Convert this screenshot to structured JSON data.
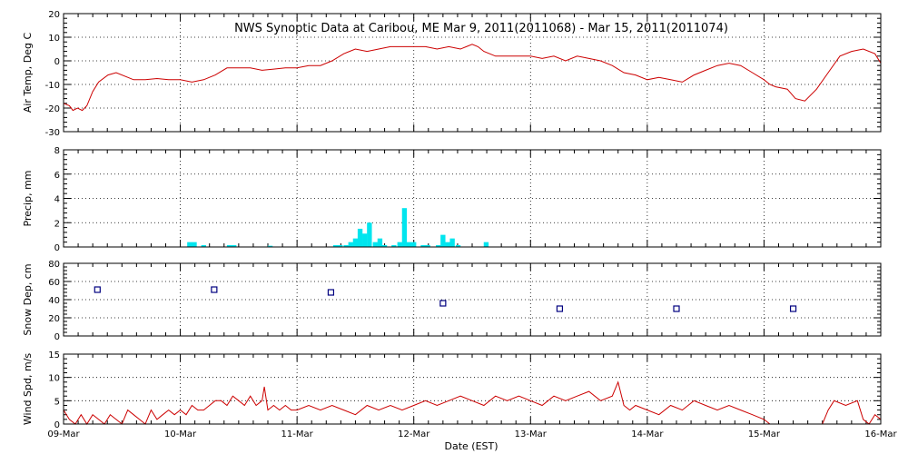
{
  "chart_data": {
    "title": "NWS Synoptic Data at Caribou, ME   Mar  9, 2011(2011068) - Mar 15, 2011(2011074)",
    "xlabel": "Date (EST)",
    "x_ticks": [
      "09-Mar",
      "10-Mar",
      "11-Mar",
      "12-Mar",
      "13-Mar",
      "14-Mar",
      "15-Mar",
      "16-Mar"
    ],
    "x_range_days": [
      0,
      7
    ],
    "panels": [
      {
        "id": "air-temp",
        "type": "line",
        "ylabel": "Air Temp, Deg C",
        "ylim": [
          -30,
          20
        ],
        "y_ticks": [
          -30,
          -20,
          -10,
          0,
          10,
          20
        ],
        "grid": true,
        "color": "#cc0000",
        "series": [
          {
            "x": [
              0,
              0.05,
              0.08,
              0.12,
              0.16,
              0.2,
              0.25,
              0.3,
              0.38,
              0.45,
              0.55,
              0.6,
              0.7,
              0.8,
              0.9,
              1.0,
              1.1,
              1.2,
              1.3,
              1.4,
              1.5,
              1.6,
              1.7,
              1.8,
              1.9,
              2.0,
              2.1,
              2.2,
              2.3,
              2.4,
              2.5,
              2.6,
              2.7,
              2.8,
              2.9,
              3.0,
              3.1,
              3.2,
              3.3,
              3.4,
              3.45,
              3.5,
              3.55,
              3.6,
              3.7,
              3.8,
              3.9,
              4.0,
              4.1,
              4.2,
              4.3,
              4.4,
              4.5,
              4.6,
              4.7,
              4.8,
              4.9,
              5.0,
              5.1,
              5.2,
              5.3,
              5.4,
              5.5,
              5.6,
              5.7,
              5.8,
              5.9,
              6.0,
              6.05,
              6.1,
              6.2,
              6.27,
              6.35,
              6.45,
              6.55,
              6.65,
              6.75,
              6.85,
              6.95,
              7.0
            ],
            "y": [
              -18,
              -19,
              -21,
              -20,
              -21,
              -19,
              -13,
              -9,
              -6,
              -5,
              -7,
              -8,
              -8,
              -7.5,
              -8,
              -8,
              -9,
              -8,
              -6,
              -3,
              -3,
              -3,
              -4,
              -3.5,
              -3,
              -3,
              -2,
              -2,
              0,
              3,
              5,
              4,
              5,
              6,
              6,
              6,
              6,
              5,
              6,
              5,
              6,
              7,
              6,
              4,
              2,
              2,
              2,
              2,
              1,
              2,
              0,
              2,
              1,
              0,
              -2,
              -5,
              -6,
              -8,
              -7,
              -8,
              -9,
              -6,
              -4,
              -2,
              -1,
              -2,
              -5,
              -8,
              -10,
              -11,
              -12,
              -16,
              -17,
              -12,
              -5,
              2,
              4,
              5,
              3,
              -1
            ]
          }
        ]
      },
      {
        "id": "precip",
        "type": "bar",
        "ylabel": "Precip, mm",
        "ylim": [
          0,
          8
        ],
        "y_ticks": [
          0,
          2,
          4,
          6,
          8
        ],
        "grid": true,
        "color": "#00e5ee",
        "bar_width_days": 0.041667,
        "series": [
          {
            "x": [
              1.08,
              1.12,
              1.2,
              1.42,
              1.46,
              1.77,
              2.33,
              2.37,
              2.42,
              2.46,
              2.5,
              2.54,
              2.58,
              2.62,
              2.67,
              2.71,
              2.75,
              2.83,
              2.88,
              2.92,
              2.96,
              3.0,
              3.08,
              3.12,
              3.21,
              3.25,
              3.29,
              3.33,
              3.38,
              3.62
            ],
            "y": [
              0.4,
              0.4,
              0.15,
              0.15,
              0.15,
              0.1,
              0.15,
              0.15,
              0.15,
              0.4,
              0.7,
              1.5,
              1.1,
              2.0,
              0.4,
              0.7,
              0.15,
              0.15,
              0.4,
              3.2,
              0.4,
              0.4,
              0.15,
              0.15,
              0.15,
              1.0,
              0.4,
              0.7,
              0.15,
              0.4
            ]
          }
        ]
      },
      {
        "id": "snow-depth",
        "type": "scatter",
        "ylabel": "Snow Dep, cm",
        "ylim": [
          0,
          80
        ],
        "y_ticks": [
          0,
          20,
          40,
          60,
          80
        ],
        "grid": true,
        "color": "#000080",
        "series": [
          {
            "x": [
              0.29,
              1.29,
              2.29,
              3.25,
              4.25,
              5.25,
              6.25
            ],
            "y": [
              51,
              51,
              48,
              36,
              30,
              30,
              30
            ]
          }
        ]
      },
      {
        "id": "wind-speed",
        "type": "line",
        "ylabel": "Wind Spd, m/s",
        "ylim": [
          0,
          15
        ],
        "y_ticks": [
          0,
          5,
          10,
          15
        ],
        "grid": true,
        "color": "#cc0000",
        "series": [
          {
            "x": [
              0,
              0.05,
              0.1,
              0.15,
              0.2,
              0.25,
              0.3,
              0.35,
              0.4,
              0.45,
              0.5,
              0.55,
              0.6,
              0.65,
              0.7,
              0.75,
              0.8,
              0.85,
              0.9,
              0.95,
              1.0,
              1.05,
              1.1,
              1.15,
              1.2,
              1.25,
              1.3,
              1.35,
              1.4,
              1.45,
              1.5,
              1.55,
              1.6,
              1.65,
              1.7,
              1.72,
              1.75,
              1.8,
              1.85,
              1.9,
              1.95,
              2.0,
              2.1,
              2.2,
              2.3,
              2.4,
              2.5,
              2.6,
              2.7,
              2.8,
              2.9,
              3.0,
              3.1,
              3.2,
              3.3,
              3.4,
              3.5,
              3.6,
              3.7,
              3.8,
              3.9,
              4.0,
              4.1,
              4.2,
              4.3,
              4.4,
              4.5,
              4.6,
              4.7,
              4.75,
              4.8,
              4.85,
              4.9,
              5.0,
              5.1,
              5.2,
              5.3,
              5.4,
              5.5,
              5.6,
              5.7,
              5.8,
              5.9,
              6.0,
              6.05,
              6.1,
              6.15,
              6.2,
              6.3,
              6.4,
              6.5,
              6.55,
              6.6,
              6.7,
              6.8,
              6.85,
              6.9,
              6.95,
              7.0
            ],
            "y": [
              3,
              1,
              0,
              2,
              0,
              2,
              1,
              0,
              2,
              1,
              0,
              3,
              2,
              1,
              0,
              3,
              1,
              2,
              3,
              2,
              3,
              2,
              4,
              3,
              3,
              4,
              5,
              5,
              4,
              6,
              5,
              4,
              6,
              4,
              5,
              8,
              3,
              4,
              3,
              4,
              3,
              3,
              4,
              3,
              4,
              3,
              2,
              4,
              3,
              4,
              3,
              4,
              5,
              4,
              5,
              6,
              5,
              4,
              6,
              5,
              6,
              5,
              4,
              6,
              5,
              6,
              7,
              5,
              6,
              9,
              4,
              3,
              4,
              3,
              2,
              4,
              3,
              5,
              4,
              3,
              4,
              3,
              2,
              1,
              0,
              0,
              0,
              0,
              0,
              0,
              0,
              3,
              5,
              4,
              5,
              1,
              0,
              2,
              1
            ]
          }
        ]
      }
    ]
  }
}
